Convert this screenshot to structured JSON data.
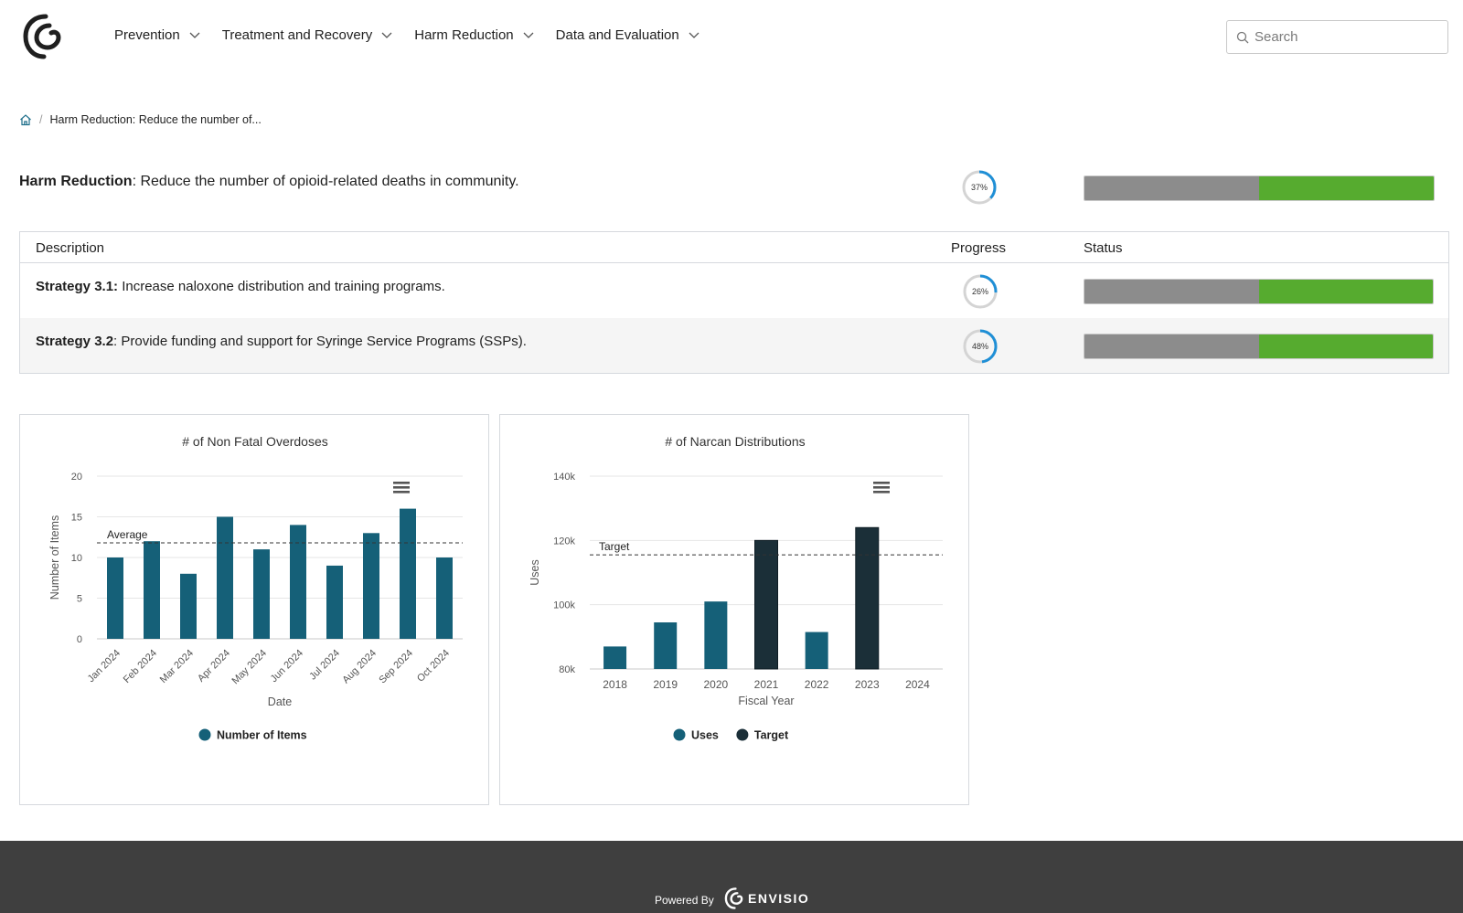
{
  "nav": {
    "items": [
      {
        "label": "Prevention"
      },
      {
        "label": "Treatment and Recovery"
      },
      {
        "label": "Harm Reduction"
      },
      {
        "label": "Data and Evaluation"
      }
    ],
    "search_placeholder": "Search"
  },
  "breadcrumb": {
    "current": "Harm Reduction: Reduce the number of..."
  },
  "goal": {
    "category": "Harm Reduction",
    "text": ": Reduce the number of opioid-related deaths in community.",
    "progress_label": "37%",
    "progress": 0.37,
    "status_gray_fraction": 0.5
  },
  "table": {
    "headers": {
      "description": "Description",
      "progress": "Progress",
      "status": "Status"
    },
    "rows": [
      {
        "strategy": "Strategy 3.1:",
        "text": " Increase naloxone distribution and training programs.",
        "progress_label": "26%",
        "progress": 0.26,
        "status_gray_fraction": 0.5
      },
      {
        "strategy": "Strategy 3.2",
        "text": ": Provide funding and support for Syringe Service Programs (SSPs).",
        "progress_label": "48%",
        "progress": 0.48,
        "status_gray_fraction": 0.5
      }
    ]
  },
  "colors": {
    "bar_primary": "#156078",
    "bar_target": "#1b2f38",
    "status_gray": "#8c8c8c",
    "status_green": "#56ab2f",
    "ring_blue": "#1f8fd6",
    "ring_track": "#d4d4d4"
  },
  "icons": {
    "logo": "envisio-logo-icon",
    "home": "home-icon",
    "search": "search-icon",
    "chart_menu": "hamburger-menu-icon"
  },
  "chart_data": [
    {
      "type": "bar",
      "title": "# of Non Fatal Overdoses",
      "xlabel": "Date",
      "ylabel": "Number of Items",
      "categories": [
        "Jan 2024",
        "Feb 2024",
        "Mar 2024",
        "Apr 2024",
        "May 2024",
        "Jun 2024",
        "Jul 2024",
        "Aug 2024",
        "Sep 2024",
        "Oct 2024"
      ],
      "series": [
        {
          "name": "Number of Items",
          "values": [
            10,
            12,
            8,
            15,
            11,
            14,
            9,
            13,
            16,
            10
          ]
        }
      ],
      "ylim": [
        0,
        20
      ],
      "yticks": [
        0,
        5,
        10,
        15,
        20
      ],
      "reference_line": {
        "label": "Average",
        "value": 11.8
      },
      "grid": true,
      "legend": "bottom"
    },
    {
      "type": "bar",
      "title": "# of Narcan Distributions",
      "xlabel": "Fiscal Year",
      "ylabel": "Uses",
      "categories": [
        "2018",
        "2019",
        "2020",
        "2021",
        "2022",
        "2023",
        "2024"
      ],
      "series": [
        {
          "name": "Uses",
          "values": [
            87000,
            94500,
            101000,
            null,
            91500,
            null,
            null
          ]
        },
        {
          "name": "Target",
          "values": [
            null,
            null,
            null,
            120000,
            null,
            124000,
            null
          ]
        }
      ],
      "ylim": [
        80000,
        140000
      ],
      "yticks": [
        80000,
        100000,
        120000,
        140000
      ],
      "ytick_labels": [
        "80k",
        "100k",
        "120k",
        "140k"
      ],
      "reference_line": {
        "label": "Target",
        "value": 115500
      },
      "grid": true,
      "legend": "bottom"
    }
  ],
  "footer": {
    "powered_by": "Powered By",
    "brand": "ENVISIO"
  }
}
